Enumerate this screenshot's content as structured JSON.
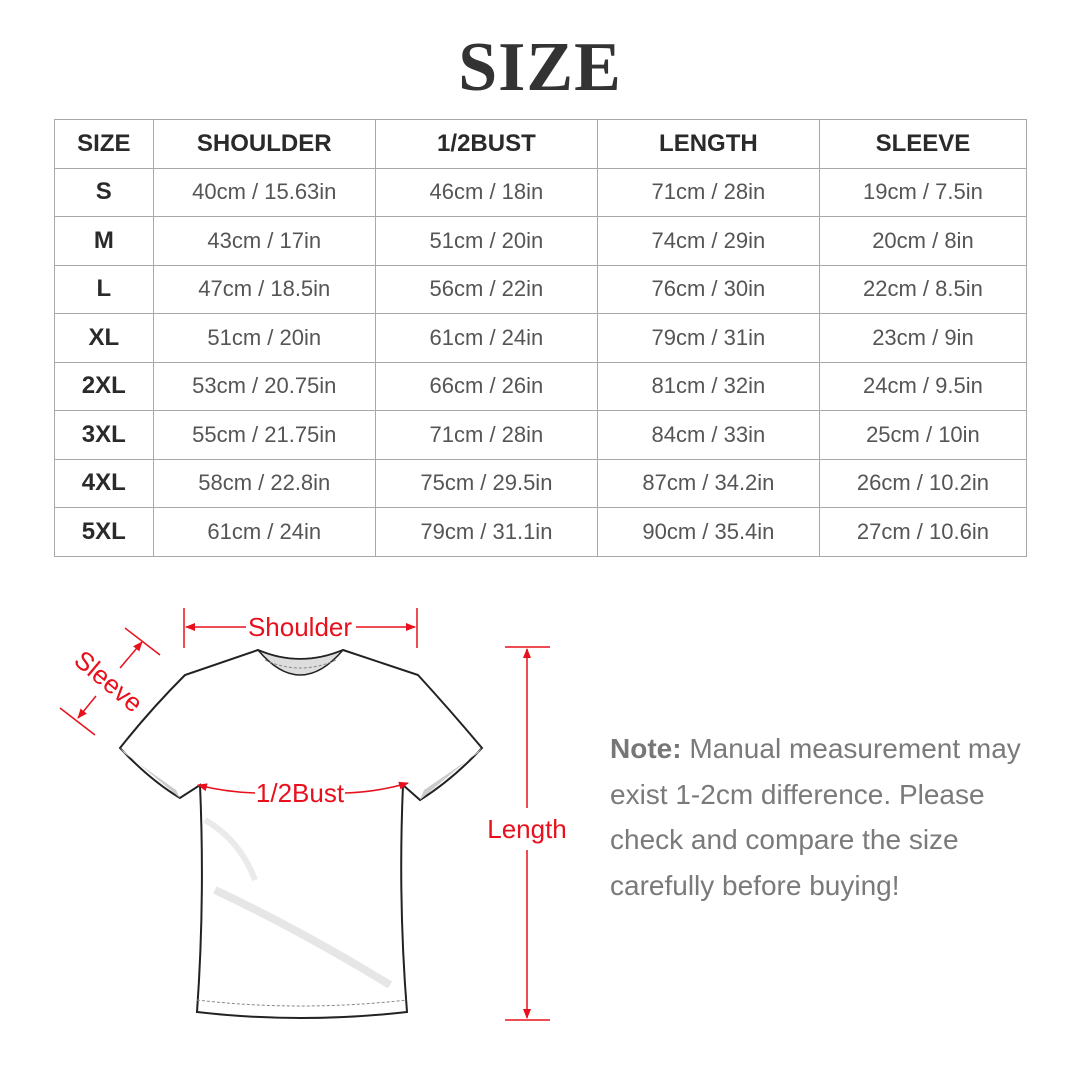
{
  "title": "SIZE",
  "table": {
    "headers": [
      "SIZE",
      "SHOULDER",
      "1/2BUST",
      "LENGTH",
      "SLEEVE"
    ],
    "rows": [
      [
        "S",
        "40cm / 15.63in",
        "46cm / 18in",
        "71cm / 28in",
        "19cm / 7.5in"
      ],
      [
        "M",
        "43cm / 17in",
        "51cm / 20in",
        "74cm / 29in",
        "20cm / 8in"
      ],
      [
        "L",
        "47cm / 18.5in",
        "56cm / 22in",
        "76cm / 30in",
        "22cm / 8.5in"
      ],
      [
        "XL",
        "51cm / 20in",
        "61cm / 24in",
        "79cm / 31in",
        "23cm / 9in"
      ],
      [
        "2XL",
        "53cm / 20.75in",
        "66cm / 26in",
        "81cm / 32in",
        "24cm / 9.5in"
      ],
      [
        "3XL",
        "55cm / 21.75in",
        "71cm / 28in",
        "84cm / 33in",
        "25cm / 10in"
      ],
      [
        "4XL",
        "58cm / 22.8in",
        "75cm / 29.5in",
        "87cm / 34.2in",
        "26cm / 10.2in"
      ],
      [
        "5XL",
        "61cm / 24in",
        "79cm / 31.1in",
        "90cm / 35.4in",
        "27cm / 10.6in"
      ]
    ]
  },
  "diagram": {
    "shoulder_label": "Shoulder",
    "sleeve_label": "Sleeve",
    "bust_label": "1/2Bust",
    "length_label": "Length",
    "accent_color": "#e8101c"
  },
  "note": {
    "prefix": "Note:",
    "text": " Manual measurement may exist 1-2cm difference. Please check and compare the size carefully before buying!"
  }
}
